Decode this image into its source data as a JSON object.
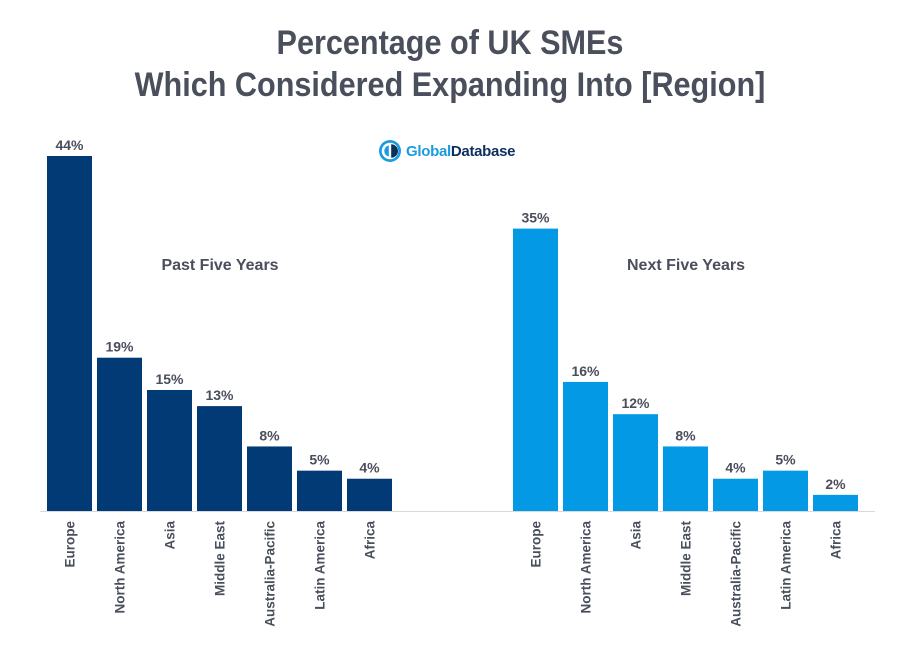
{
  "title": {
    "line1": "Percentage of UK SMEs",
    "line2": "Which Considered Expanding Into [Region]"
  },
  "logo": {
    "part1": "Global",
    "part2": "Database",
    "icon": "globe-icon"
  },
  "colors": {
    "past": "#023a75",
    "next": "#0399e5",
    "text": "#4a4f5c",
    "axis": "#d9d9d9"
  },
  "chart_data": [
    {
      "type": "bar",
      "title": "Past Five Years",
      "categories": [
        "Europe",
        "North America",
        "Asia",
        "Middle East",
        "Australia-Pacific",
        "Latin America",
        "Africa"
      ],
      "values": [
        44,
        19,
        15,
        13,
        8,
        5,
        4
      ],
      "unit": "%",
      "ylim": [
        0,
        44
      ]
    },
    {
      "type": "bar",
      "title": "Next Five Years",
      "categories": [
        "Europe",
        "North America",
        "Asia",
        "Middle East",
        "Australia-Pacific",
        "Latin America",
        "Africa"
      ],
      "values": [
        35,
        16,
        12,
        8,
        4,
        5,
        2
      ],
      "unit": "%",
      "ylim": [
        0,
        44
      ]
    }
  ]
}
